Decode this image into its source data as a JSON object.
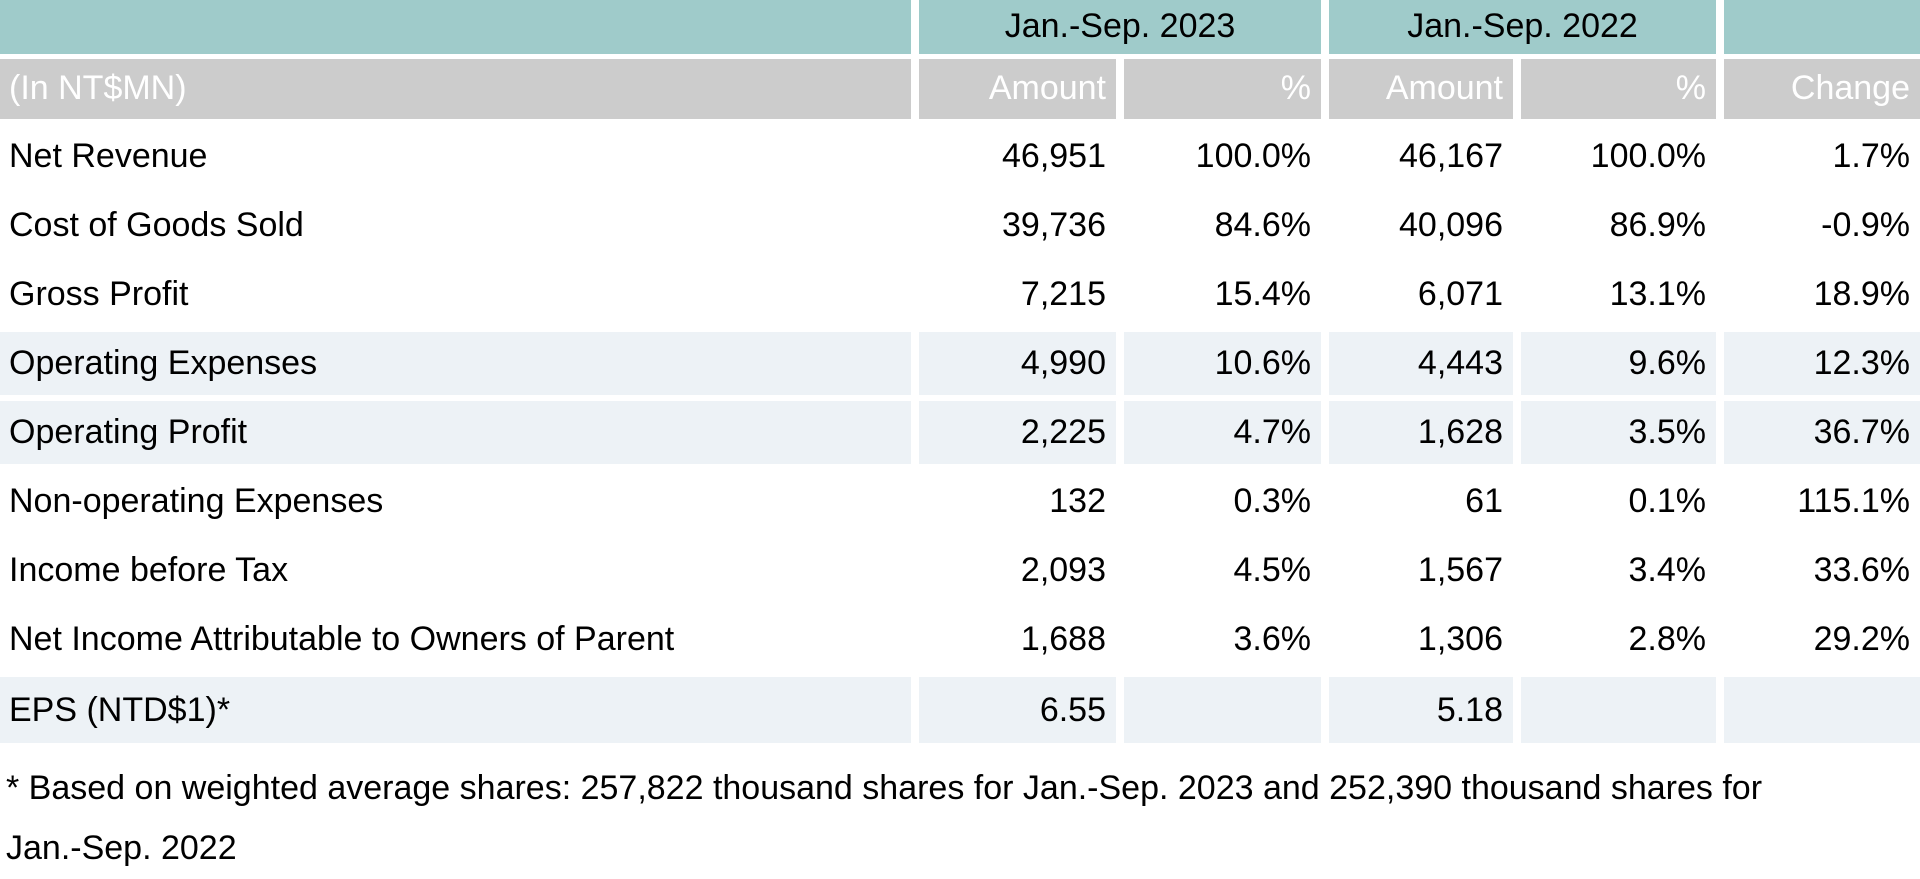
{
  "colors": {
    "period_header_bg": "#9fcbca",
    "sub_header_bg": "#cccccc",
    "sub_header_text": "#ffffff",
    "tinted_row_bg": "#edf2f6",
    "body_text": "#000000"
  },
  "table": {
    "unit_label": "(In NT$MN)",
    "period_headers": {
      "p2023": "Jan.-Sep. 2023",
      "p2022": "Jan.-Sep. 2022"
    },
    "column_headers": {
      "amount": "Amount",
      "percent": "%",
      "change": "Change"
    },
    "rows": [
      {
        "label": "Net Revenue",
        "amount_2023": "46,951",
        "pct_2023": "100.0%",
        "amount_2022": "46,167",
        "pct_2022": "100.0%",
        "change": "1.7%",
        "tinted": false
      },
      {
        "label": "Cost of Goods Sold",
        "amount_2023": "39,736",
        "pct_2023": "84.6%",
        "amount_2022": "40,096",
        "pct_2022": "86.9%",
        "change": "-0.9%",
        "tinted": false
      },
      {
        "label": "Gross Profit",
        "amount_2023": "7,215",
        "pct_2023": "15.4%",
        "amount_2022": "6,071",
        "pct_2022": "13.1%",
        "change": "18.9%",
        "tinted": false
      },
      {
        "label": "Operating Expenses",
        "amount_2023": "4,990",
        "pct_2023": "10.6%",
        "amount_2022": "4,443",
        "pct_2022": "9.6%",
        "change": "12.3%",
        "tinted": true
      },
      {
        "label": "Operating Profit",
        "amount_2023": "2,225",
        "pct_2023": "4.7%",
        "amount_2022": "1,628",
        "pct_2022": "3.5%",
        "change": "36.7%",
        "tinted": true
      },
      {
        "label": "Non-operating Expenses",
        "amount_2023": "132",
        "pct_2023": "0.3%",
        "amount_2022": "61",
        "pct_2022": "0.1%",
        "change": "115.1%",
        "tinted": false
      },
      {
        "label": "Income before Tax",
        "amount_2023": "2,093",
        "pct_2023": "4.5%",
        "amount_2022": "1,567",
        "pct_2022": "3.4%",
        "change": "33.6%",
        "tinted": false
      },
      {
        "label": "Net Income Attributable to Owners of Parent",
        "amount_2023": "1,688",
        "pct_2023": "3.6%",
        "amount_2022": "1,306",
        "pct_2022": "2.8%",
        "change": "29.2%",
        "tinted": false
      },
      {
        "label": "EPS (NTD$1)*",
        "amount_2023": "6.55",
        "pct_2023": "",
        "amount_2022": "5.18",
        "pct_2022": "",
        "change": "",
        "tinted": true
      }
    ],
    "footnote": "* Based on weighted average shares: 257,822 thousand shares for Jan.-Sep. 2023 and 252,390 thousand shares for Jan.-Sep. 2022"
  }
}
